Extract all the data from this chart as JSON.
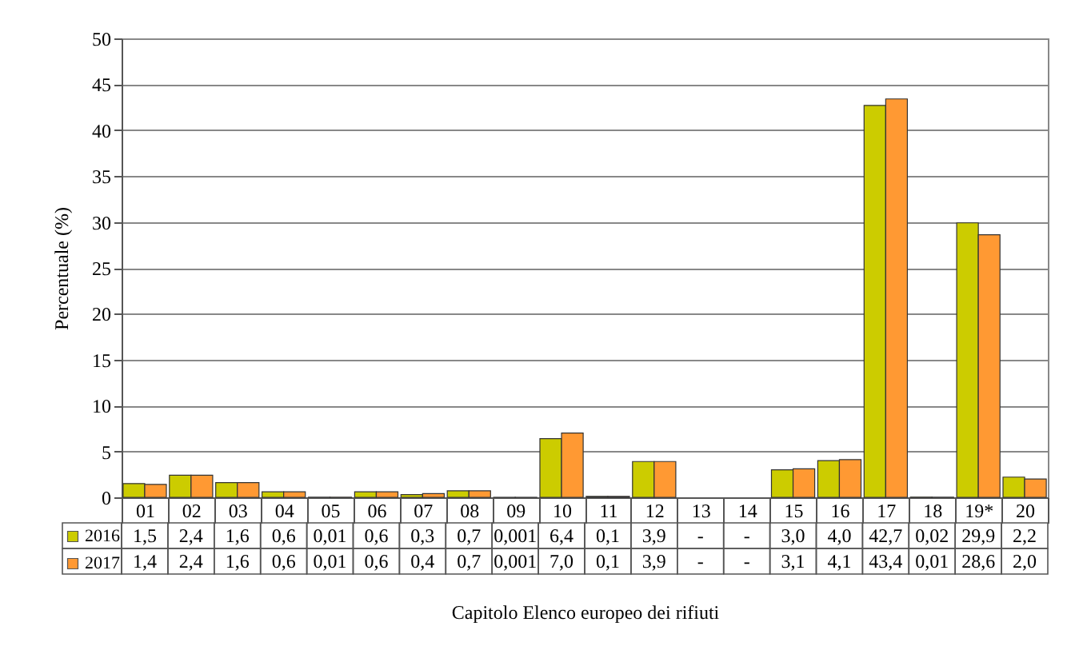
{
  "chart_data": {
    "type": "bar",
    "xlabel": "Capitolo Elenco europeo dei rifiuti",
    "ylabel": "Percentuale (%)",
    "categories": [
      "01",
      "02",
      "03",
      "04",
      "05",
      "06",
      "07",
      "08",
      "09",
      "10",
      "11",
      "12",
      "13",
      "14",
      "15",
      "16",
      "17",
      "18",
      "19*",
      "20"
    ],
    "series": [
      {
        "name": "2016",
        "color": "#cccc00",
        "values": [
          1.5,
          2.4,
          1.6,
          0.6,
          0.01,
          0.6,
          0.3,
          0.7,
          0.001,
          6.4,
          0.1,
          3.9,
          null,
          null,
          3.0,
          4.0,
          42.7,
          0.02,
          29.9,
          2.2
        ],
        "value_labels": [
          "1,5",
          "2,4",
          "1,6",
          "0,6",
          "0,01",
          "0,6",
          "0,3",
          "0,7",
          "0,001",
          "6,4",
          "0,1",
          "3,9",
          "-",
          "-",
          "3,0",
          "4,0",
          "42,7",
          "0,02",
          "29,9",
          "2,2"
        ]
      },
      {
        "name": "2017",
        "color": "#ff9933",
        "values": [
          1.4,
          2.4,
          1.6,
          0.6,
          0.01,
          0.6,
          0.4,
          0.7,
          0.001,
          7.0,
          0.1,
          3.9,
          null,
          null,
          3.1,
          4.1,
          43.4,
          0.01,
          28.6,
          2.0
        ],
        "value_labels": [
          "1,4",
          "2,4",
          "1,6",
          "0,6",
          "0,01",
          "0,6",
          "0,4",
          "0,7",
          "0,001",
          "7,0",
          "0,1",
          "3,9",
          "-",
          "-",
          "3,1",
          "4,1",
          "43,4",
          "0,01",
          "28,6",
          "2,0"
        ]
      }
    ],
    "ylim": [
      0,
      50
    ],
    "yticks": [
      0,
      5,
      10,
      15,
      20,
      25,
      30,
      35,
      40,
      45,
      50
    ],
    "grid": "y",
    "legend": "bottom left"
  }
}
